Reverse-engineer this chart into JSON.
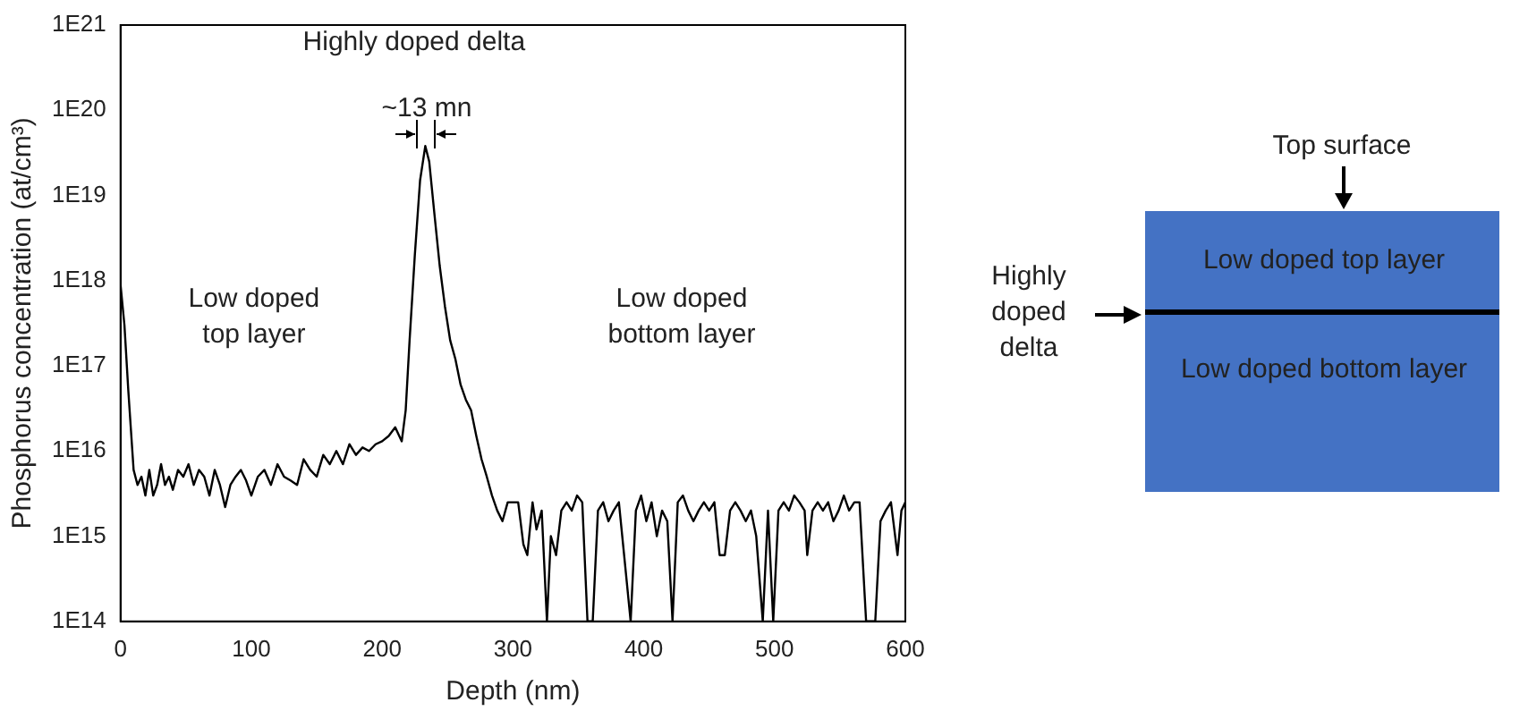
{
  "chart_data": {
    "type": "line",
    "xlabel": "Depth (nm)",
    "ylabel": "Phosphorus concentration (at/cm³)",
    "xlim": [
      0,
      600
    ],
    "xticks": [
      0,
      100,
      200,
      300,
      400,
      500,
      600
    ],
    "ylim": [
      100000000000000.0,
      1e+21
    ],
    "yticks": [
      {
        "value": 100000000000000.0,
        "label": "1E14"
      },
      {
        "value": 1000000000000000.0,
        "label": "1E15"
      },
      {
        "value": 1e+16,
        "label": "1E16"
      },
      {
        "value": 1e+17,
        "label": "1E17"
      },
      {
        "value": 1e+18,
        "label": "1E18"
      },
      {
        "value": 1e+19,
        "label": "1E19"
      },
      {
        "value": 1e+20,
        "label": "1E20"
      },
      {
        "value": 1e+21,
        "label": "1E21"
      }
    ],
    "log": "y",
    "grid": false,
    "legend": false,
    "marker": "none",
    "line_style": "solid",
    "series": [
      {
        "color": "#000000",
        "x": [
          0,
          3,
          6,
          10,
          13,
          16,
          19,
          22,
          25,
          28,
          31,
          34,
          37,
          40,
          44,
          48,
          52,
          56,
          60,
          64,
          68,
          72,
          76,
          80,
          84,
          88,
          92,
          96,
          100,
          105,
          110,
          115,
          120,
          125,
          130,
          135,
          140,
          145,
          150,
          155,
          160,
          165,
          170,
          175,
          180,
          185,
          190,
          195,
          200,
          205,
          210,
          215,
          218,
          221,
          225,
          229,
          233,
          236,
          240,
          244,
          248,
          252,
          256,
          260,
          264,
          268,
          272,
          276,
          280,
          284,
          288,
          292,
          296,
          300,
          304,
          308,
          311,
          315,
          318,
          322,
          326,
          329,
          333,
          337,
          341,
          345,
          349,
          353,
          357,
          361,
          365,
          369,
          373,
          377,
          381,
          385,
          390,
          394,
          398,
          402,
          406,
          410,
          414,
          418,
          422,
          426,
          430,
          434,
          438,
          442,
          446,
          450,
          454,
          458,
          462,
          466,
          470,
          474,
          478,
          482,
          486,
          491,
          495,
          499,
          503,
          507,
          511,
          515,
          519,
          523,
          525,
          529,
          533,
          537,
          541,
          545,
          549,
          553,
          557,
          561,
          565,
          570,
          574,
          577,
          581,
          585,
          589,
          594,
          597,
          600
        ],
        "values": [
          9e+17,
          3e+17,
          5e+16,
          6000000000000000.0,
          4000000000000000.0,
          5000000000000000.0,
          3000000000000000.0,
          6000000000000000.0,
          3000000000000000.0,
          4000000000000000.0,
          7000000000000000.0,
          4000000000000000.0,
          5000000000000000.0,
          3500000000000000.0,
          6000000000000000.0,
          5000000000000000.0,
          7000000000000000.0,
          4000000000000000.0,
          6000000000000000.0,
          5000000000000000.0,
          3000000000000000.0,
          6000000000000000.0,
          4000000000000000.0,
          2200000000000000.0,
          4000000000000000.0,
          5000000000000000.0,
          6000000000000000.0,
          4500000000000000.0,
          3000000000000000.0,
          5000000000000000.0,
          6000000000000000.0,
          4000000000000000.0,
          7000000000000000.0,
          5000000000000000.0,
          4500000000000000.0,
          4000000000000000.0,
          8000000000000000.0,
          6000000000000000.0,
          5000000000000000.0,
          9000000000000000.0,
          7000000000000000.0,
          1e+16,
          7000000000000000.0,
          1.2e+16,
          9000000000000000.0,
          1.1e+16,
          1e+16,
          1.2e+16,
          1.3e+16,
          1.5e+16,
          1.9e+16,
          1.3e+16,
          3e+16,
          2e+17,
          2e+18,
          1.5e+19,
          3.8e+19,
          2.5e+19,
          6e+18,
          1.5e+18,
          5e+17,
          2e+17,
          1.2e+17,
          6e+16,
          4e+16,
          3e+16,
          1.5e+16,
          8000000000000000.0,
          5000000000000000.0,
          3000000000000000.0,
          2000000000000000.0,
          1500000000000000.0,
          2500000000000000.0,
          2500000000000000.0,
          2500000000000000.0,
          800000000000000.0,
          600000000000000.0,
          2500000000000000.0,
          1200000000000000.0,
          2000000000000000.0,
          100000000000000.0,
          1000000000000000.0,
          600000000000000.0,
          2000000000000000.0,
          2500000000000000.0,
          2000000000000000.0,
          3000000000000000.0,
          2500000000000000.0,
          100000000000000.0,
          100000000000000.0,
          2000000000000000.0,
          2500000000000000.0,
          1500000000000000.0,
          2000000000000000.0,
          2500000000000000.0,
          600000000000000.0,
          100000000000000.0,
          2000000000000000.0,
          3000000000000000.0,
          1500000000000000.0,
          2500000000000000.0,
          1000000000000000.0,
          2000000000000000.0,
          1500000000000000.0,
          100000000000000.0,
          2500000000000000.0,
          3000000000000000.0,
          2000000000000000.0,
          1500000000000000.0,
          2000000000000000.0,
          2500000000000000.0,
          2000000000000000.0,
          2500000000000000.0,
          600000000000000.0,
          600000000000000.0,
          2000000000000000.0,
          2500000000000000.0,
          2000000000000000.0,
          1500000000000000.0,
          2000000000000000.0,
          1000000000000000.0,
          100000000000000.0,
          2000000000000000.0,
          100000000000000.0,
          2000000000000000.0,
          2500000000000000.0,
          2000000000000000.0,
          3000000000000000.0,
          2500000000000000.0,
          2000000000000000.0,
          600000000000000.0,
          2000000000000000.0,
          2500000000000000.0,
          2000000000000000.0,
          2500000000000000.0,
          1500000000000000.0,
          2000000000000000.0,
          3000000000000000.0,
          2000000000000000.0,
          2500000000000000.0,
          2500000000000000.0,
          100000000000000.0,
          100000000000000.0,
          100000000000000.0,
          1500000000000000.0,
          2000000000000000.0,
          2500000000000000.0,
          600000000000000.0,
          2000000000000000.0,
          2500000000000000.0
        ]
      }
    ],
    "annotations": [
      "Highly doped delta",
      "~13 mn",
      "Low doped\ntop layer",
      "Low doped\nbottom layer",
      "Top surface",
      "Low doped top layer",
      "Highly\ndoped\ndelta",
      "Low doped bottom layer"
    ]
  }
}
